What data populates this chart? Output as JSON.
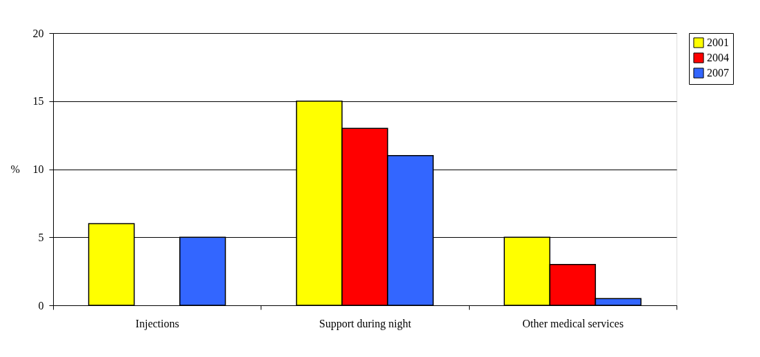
{
  "chart_data": {
    "type": "bar",
    "ylabel": "%",
    "categories": [
      "Injections",
      "Support during night",
      "Other medical services"
    ],
    "series": [
      {
        "name": "2001",
        "color": "#ffff00",
        "values": [
          6,
          15,
          5
        ]
      },
      {
        "name": "2004",
        "color": "#ff0000",
        "values": [
          null,
          13,
          3
        ]
      },
      {
        "name": "2007",
        "color": "#3366ff",
        "values": [
          5,
          11,
          0.5
        ]
      }
    ],
    "ylim": [
      0,
      20
    ],
    "yticks": [
      0,
      5,
      10,
      15,
      20
    ],
    "grid": "y",
    "legend": "right"
  }
}
